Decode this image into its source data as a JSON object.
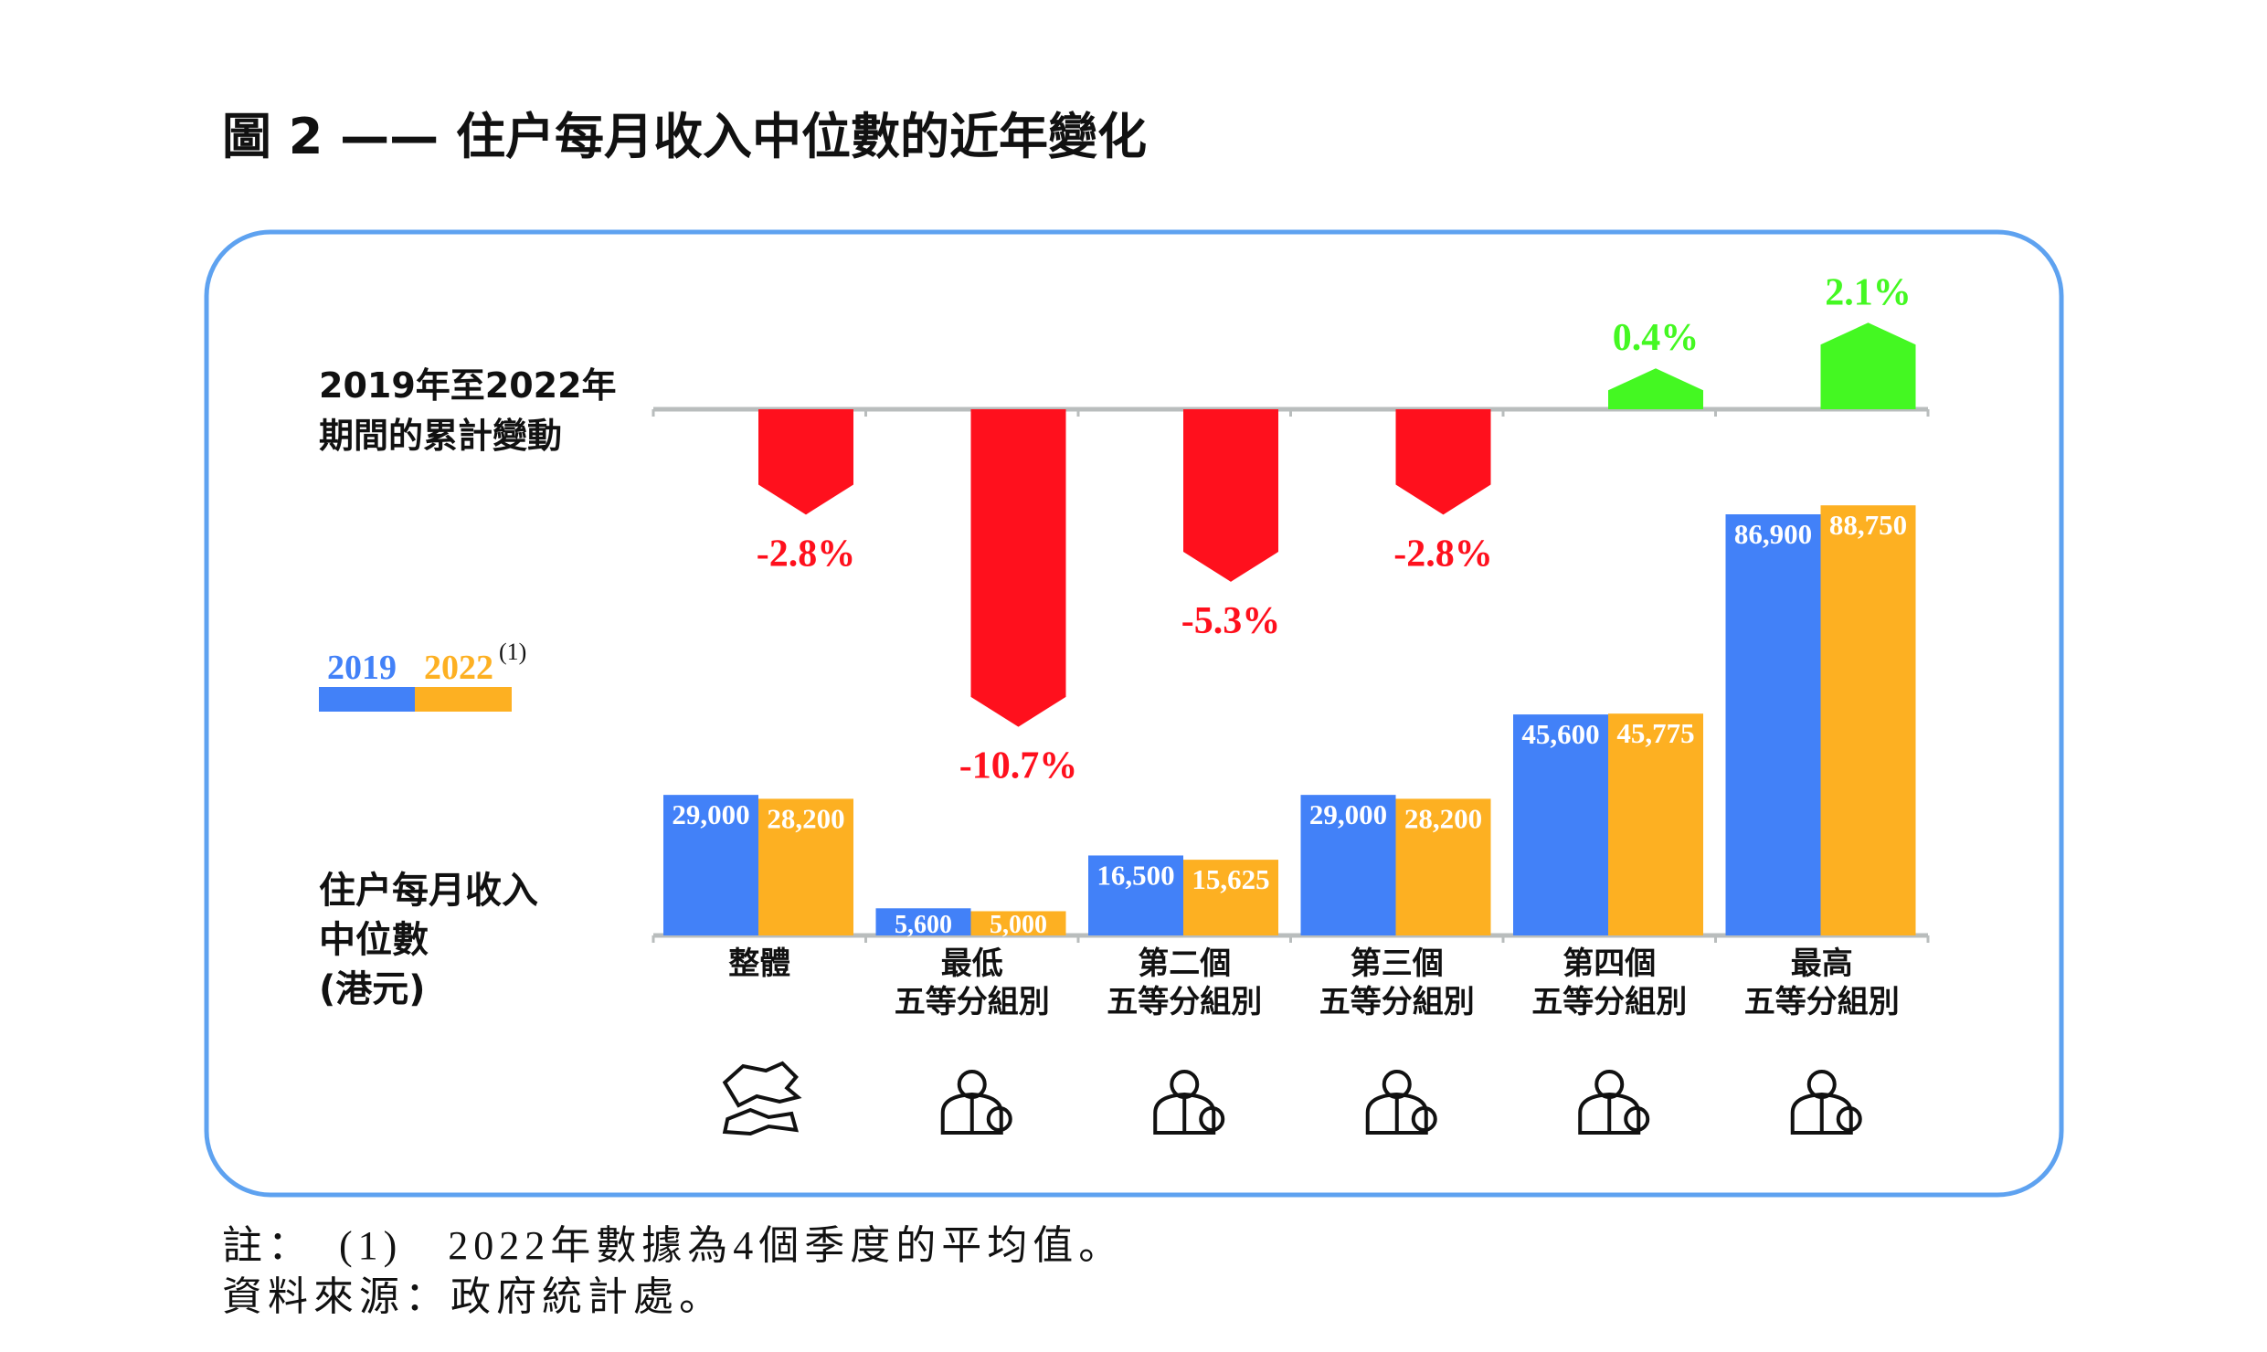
{
  "title": "圖 2 —— 住户每月收入中位數的近年變化",
  "change_label_line1": "2019年至2022年",
  "change_label_line2": "期間的累計變動",
  "income_label_line1": "住户每月收入",
  "income_label_line2": "中位數",
  "income_label_line3": "(港元)",
  "legend": {
    "y2019": "2019",
    "y2022": "2022",
    "note_mark": "(1)"
  },
  "notes": {
    "note1": "註：　(1)　2022年數據為4個季度的平均值。",
    "source": "資料來源：政府統計處。"
  },
  "colors": {
    "y2019": "#4281F8",
    "y2022": "#FDB022",
    "decrease": "#FF101D",
    "increase": "#44F822",
    "frame": "#5EA2F0",
    "axis": "#B9BDBD"
  },
  "chart_data": {
    "type": "bar",
    "categories": [
      {
        "line1": "整體",
        "line2": ""
      },
      {
        "line1": "最低",
        "line2": "五等分組別"
      },
      {
        "line1": "第二個",
        "line2": "五等分組別"
      },
      {
        "line1": "第三個",
        "line2": "五等分組別"
      },
      {
        "line1": "第四個",
        "line2": "五等分組別"
      },
      {
        "line1": "最高",
        "line2": "五等分組別"
      }
    ],
    "series": [
      {
        "name": "2019",
        "values": [
          29000,
          5600,
          16500,
          29000,
          45600,
          86900
        ],
        "labels": [
          "29,000",
          "5,600",
          "16,500",
          "29,000",
          "45,600",
          "86,900"
        ]
      },
      {
        "name": "2022",
        "values": [
          28200,
          5000,
          15625,
          28200,
          45775,
          88750
        ],
        "labels": [
          "28,200",
          "5,000",
          "15,625",
          "28,200",
          "45,775",
          "88,750"
        ]
      }
    ],
    "change": {
      "values": [
        -2.8,
        -10.7,
        -5.3,
        -2.8,
        0.4,
        2.1
      ],
      "labels": [
        "-2.8%",
        "-10.7%",
        "-5.3%",
        "-2.8%",
        "0.4%",
        "2.1%"
      ]
    },
    "icons": [
      "hong-kong-map-icon",
      "person-with-coins-icon",
      "person-with-money-icon",
      "person-with-cash-icon",
      "person-with-money-bag-icon",
      "person-with-money-bag-icon"
    ]
  }
}
